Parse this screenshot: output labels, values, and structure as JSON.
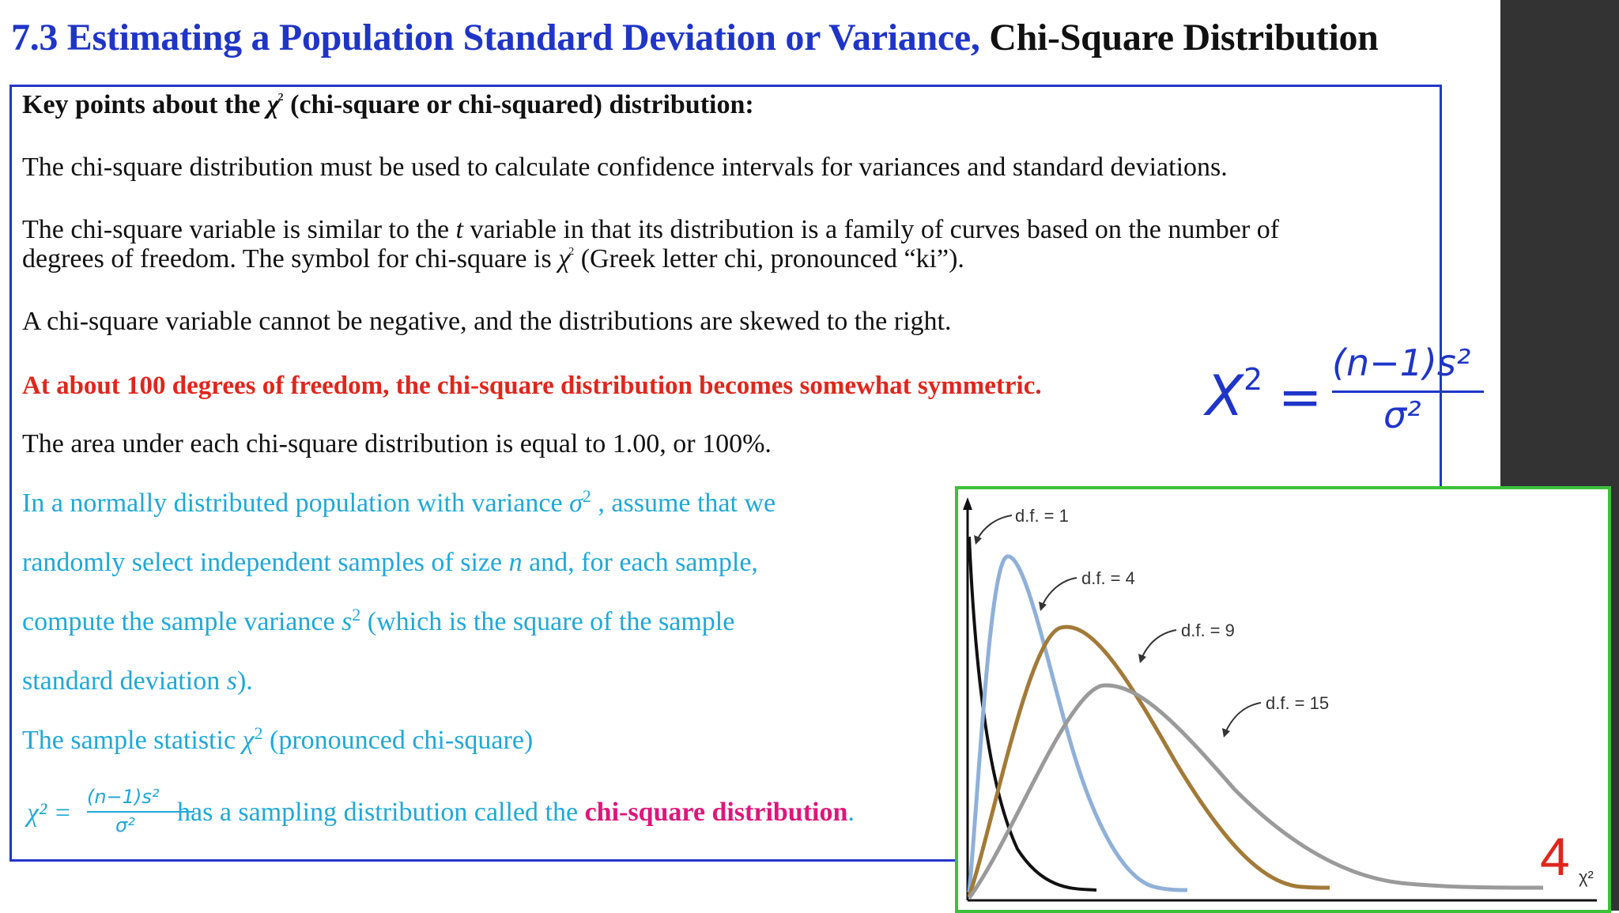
{
  "title": {
    "blue_part": "7.3 Estimating a Population Standard Deviation or Variance,",
    "black_part": "Chi-Square Distribution"
  },
  "key_points": {
    "heading_pre": "Key points about the ",
    "heading_symbol": "χ",
    "heading_sup": "2",
    "heading_post": " (chi-square or chi-squared) distribution:",
    "p1": "The chi-square distribution must be used to calculate confidence intervals for variances and standard deviations.",
    "p2_pre": "The chi-square variable is similar to the ",
    "p2_t": "t",
    "p2_post": " variable in that its distribution is a family of curves based on the number of",
    "p2b_pre": "degrees of freedom. The symbol for chi-square is ",
    "p2b_symbol": "χ",
    "p2b_sup": "2",
    "p2b_post": "  (Greek letter chi, pronounced “ki”).",
    "p3": "A chi-square variable cannot be negative, and the distributions are skewed to the right.",
    "p4_red": "At about 100 degrees of freedom, the chi-square distribution becomes somewhat symmetric.",
    "p5": "The area under each chi-square distribution is equal to 1.00, or 100%."
  },
  "cyan_text": {
    "l1_pre": "In a normally distributed population with variance ",
    "l1_sym": "σ",
    "l1_sup": "2",
    "l1_post": " , assume that we",
    "l2_pre": "randomly select independent samples of size ",
    "l2_n": "n",
    "l2_post": " and, for each sample,",
    "l3_pre": "compute the sample variance ",
    "l3_s": "s",
    "l3_sup": "2",
    "l3_post": " (which is the square of the sample",
    "l4_pre": "standard deviation ",
    "l4_s": "s",
    "l4_post": ").",
    "l5_pre": "The sample statistic ",
    "l5_sym": "χ",
    "l5_sup": "2",
    "l5_post": " (pronounced chi-square)",
    "l6_lhs": "χ² =",
    "l6_num": "(n−1)s²",
    "l6_den": "σ²",
    "l6_mid": " has a sampling distribution called the ",
    "l6_bold": "chi-square distribution",
    "l6_end": "."
  },
  "big_formula": {
    "chi": "X",
    "chi_sup": "2",
    "equals": "=",
    "numerator": "(n−1)s²",
    "denominator": "σ²"
  },
  "page_number": "4",
  "chart_data": {
    "type": "line",
    "title": "",
    "xlabel": "χ²",
    "ylabel": "",
    "series": [
      {
        "name": "d.f. = 1",
        "color": "#111111"
      },
      {
        "name": "d.f. = 4",
        "color": "#8fb0d8"
      },
      {
        "name": "d.f. = 9",
        "color": "#a27a38"
      },
      {
        "name": "d.f. = 15",
        "color": "#9a9a9a"
      }
    ],
    "grid": false,
    "legend": "annotations"
  }
}
